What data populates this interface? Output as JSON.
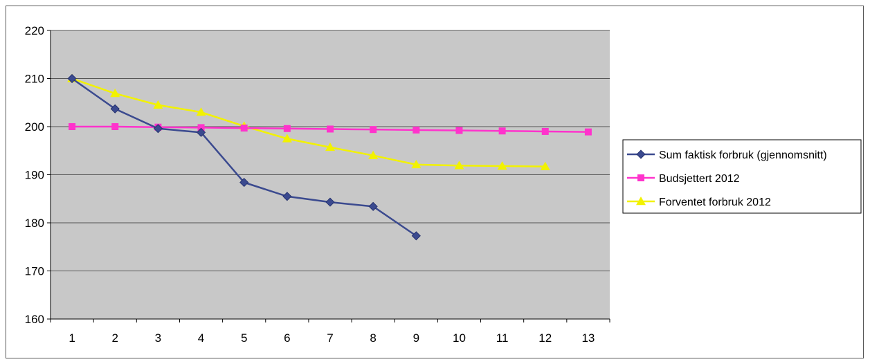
{
  "chart_data": {
    "type": "line",
    "title": "",
    "xlabel": "",
    "ylabel": "",
    "categories": [
      "1",
      "2",
      "3",
      "4",
      "5",
      "6",
      "7",
      "8",
      "9",
      "10",
      "11",
      "12",
      "13"
    ],
    "ylim": [
      160,
      220
    ],
    "yticks": [
      "220",
      "210",
      "200",
      "190",
      "180",
      "170",
      "160"
    ],
    "grid": true,
    "legend_position": "right",
    "series": [
      {
        "name": "Sum faktisk forbruk (gjennomsnitt)",
        "color": "#3b4a8f",
        "marker": "diamond",
        "values": [
          210,
          203.7,
          199.6,
          198.8,
          188.4,
          185.5,
          184.3,
          183.4,
          177.3,
          null,
          null,
          null,
          null
        ]
      },
      {
        "name": "Budsjettert 2012",
        "color": "#ff33cc",
        "marker": "square",
        "values": [
          200,
          200,
          199.9,
          199.8,
          199.7,
          199.6,
          199.5,
          199.4,
          199.3,
          199.2,
          199.1,
          199.0,
          198.9
        ]
      },
      {
        "name": "Forventet forbruk 2012",
        "color": "#f2f200",
        "marker": "triangle",
        "values": [
          210,
          206.9,
          204.5,
          203.0,
          200.1,
          197.5,
          195.7,
          194.0,
          192.1,
          191.9,
          191.8,
          191.7,
          null
        ]
      }
    ]
  }
}
